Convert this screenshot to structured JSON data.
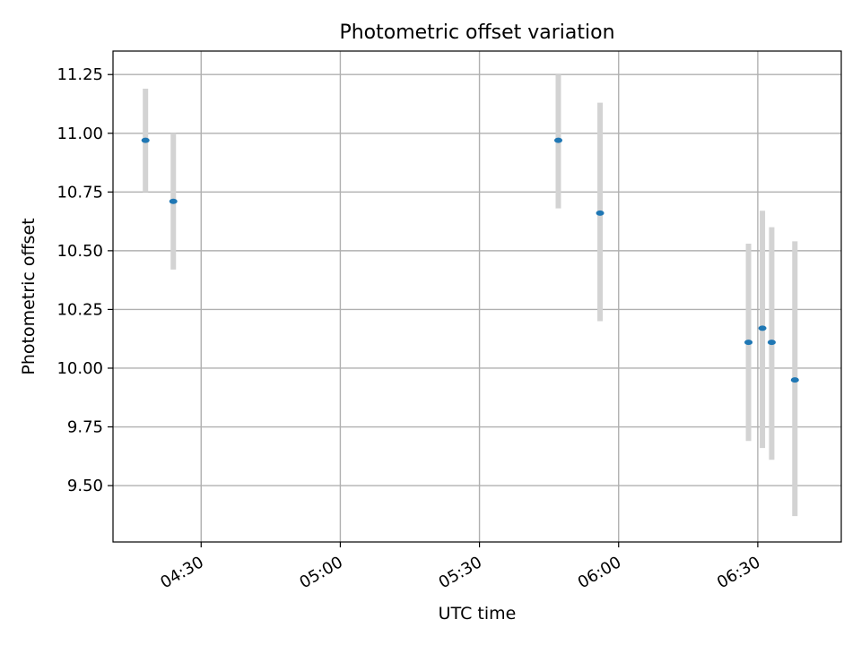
{
  "chart_data": {
    "type": "scatter",
    "title": "Photometric offset variation",
    "xlabel": "UTC time",
    "ylabel": "Photometric offset",
    "x_ticks": [
      "04:30",
      "05:00",
      "05:30",
      "06:00",
      "06:30"
    ],
    "y_ticks": [
      "9.50",
      "9.75",
      "10.00",
      "10.25",
      "10.50",
      "10.75",
      "11.00",
      "11.25"
    ],
    "xlim": [
      "04:11",
      "06:48"
    ],
    "ylim": [
      9.26,
      11.35
    ],
    "grid": true,
    "series": [
      {
        "marker_color": "#1f77b4",
        "errorbar_color": "#d3d3d3",
        "points": [
          {
            "x": "04:18",
            "y": 10.97,
            "yerr_low": 10.75,
            "yerr_high": 11.19
          },
          {
            "x": "04:24",
            "y": 10.71,
            "yerr_low": 10.42,
            "yerr_high": 11.0
          },
          {
            "x": "05:47",
            "y": 10.97,
            "yerr_low": 10.68,
            "yerr_high": 11.25
          },
          {
            "x": "05:56",
            "y": 10.66,
            "yerr_low": 10.2,
            "yerr_high": 11.13
          },
          {
            "x": "06:28",
            "y": 10.11,
            "yerr_low": 9.69,
            "yerr_high": 10.53
          },
          {
            "x": "06:31",
            "y": 10.17,
            "yerr_low": 9.66,
            "yerr_high": 10.67
          },
          {
            "x": "06:33",
            "y": 10.11,
            "yerr_low": 9.61,
            "yerr_high": 10.6
          },
          {
            "x": "06:38",
            "y": 9.95,
            "yerr_low": 9.37,
            "yerr_high": 10.54
          }
        ]
      }
    ]
  }
}
